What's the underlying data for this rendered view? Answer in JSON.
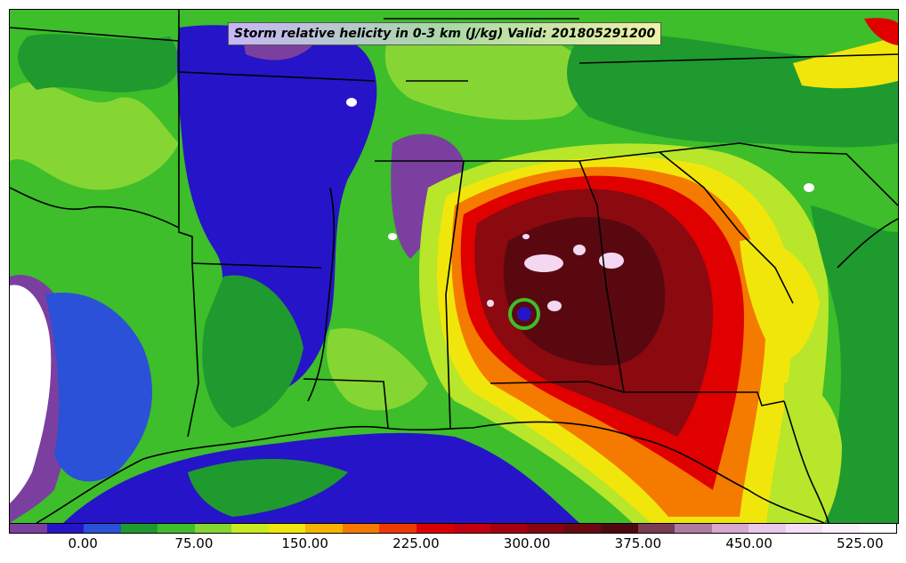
{
  "title": "Storm relative helicity in 0-3 km (J/kg) Valid: 201805291200",
  "colorbar": {
    "colors": [
      "#7b3fa0",
      "#2614c8",
      "#2a51d8",
      "#1f9a2e",
      "#3dbe2a",
      "#86d633",
      "#c7ec1e",
      "#f1e60c",
      "#f6b400",
      "#f57a00",
      "#ee3a00",
      "#db0000",
      "#c10010",
      "#a60010",
      "#860510",
      "#6a0a10",
      "#500810",
      "#7a3b55",
      "#b07ba0",
      "#d8a8d0",
      "#ecc8ec",
      "#f6e0f6",
      "#fdf0fd",
      "#ffffff"
    ],
    "tick_labels": [
      "0.00",
      "75.00",
      "150.00",
      "225.00",
      "300.00",
      "375.00",
      "450.00",
      "525.00"
    ]
  },
  "map": {
    "colors": {
      "purple": "#7b3fa0",
      "blue": "#2614c8",
      "darkgreen": "#1f9a2e",
      "green": "#3dbe2a",
      "lime": "#b8e62a",
      "yellow": "#f1e60c",
      "orange": "#f57a00",
      "red": "#e00000",
      "darkred": "#8a0a10",
      "maroon": "#5a0810",
      "pink": "#f4d8f2",
      "white": "#ffffff"
    }
  }
}
